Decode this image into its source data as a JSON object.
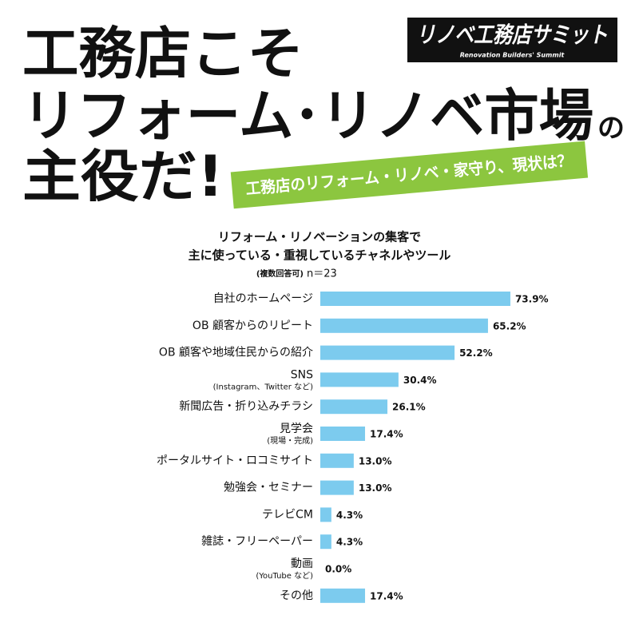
{
  "header": {
    "title_lines": [
      "工務店こそ",
      "リフォーム･リノベ市場",
      "主役だ!"
    ],
    "title_suffix": "の",
    "banner": "工務店のリフォーム・リノベ・家守り、現状は？",
    "logo": {
      "name": "リノベ工務店サミット",
      "tagline": "Renovation Builders' Summit"
    }
  },
  "chart_data": {
    "type": "bar",
    "orientation": "horizontal",
    "title": [
      "リフォーム・リノベーションの集客で",
      "主に使っている・重視しているチャネルやツール"
    ],
    "subtitle": "(複数回答可)",
    "sample": "n＝23",
    "categories": [
      "自社のホームページ",
      "OB 顧客からのリピート",
      "OB 顧客や地域住民からの紹介",
      "SNS",
      "新聞広告・折り込みチラシ",
      "見学会",
      "ポータルサイト・ロコミサイト",
      "勉強会・セミナー",
      "テレビCM",
      "雑誌・フリーペーパー",
      "動画",
      "その他"
    ],
    "category_notes": [
      null,
      null,
      null,
      "(Instagram、Twitter など)",
      null,
      "(現場・完成)",
      null,
      null,
      null,
      null,
      "(YouTube など)",
      null
    ],
    "values": [
      73.9,
      65.2,
      52.2,
      30.4,
      26.1,
      17.4,
      13.0,
      13.0,
      4.3,
      4.3,
      0.0,
      17.4
    ],
    "value_labels": [
      "73.9%",
      "65.2%",
      "52.2%",
      "30.4%",
      "26.1%",
      "17.4%",
      "13.0%",
      "13.0%",
      "4.3%",
      "4.3%",
      "0.0%",
      "17.4%"
    ],
    "color": "#7ccbee",
    "xlim": [
      0,
      100
    ]
  }
}
